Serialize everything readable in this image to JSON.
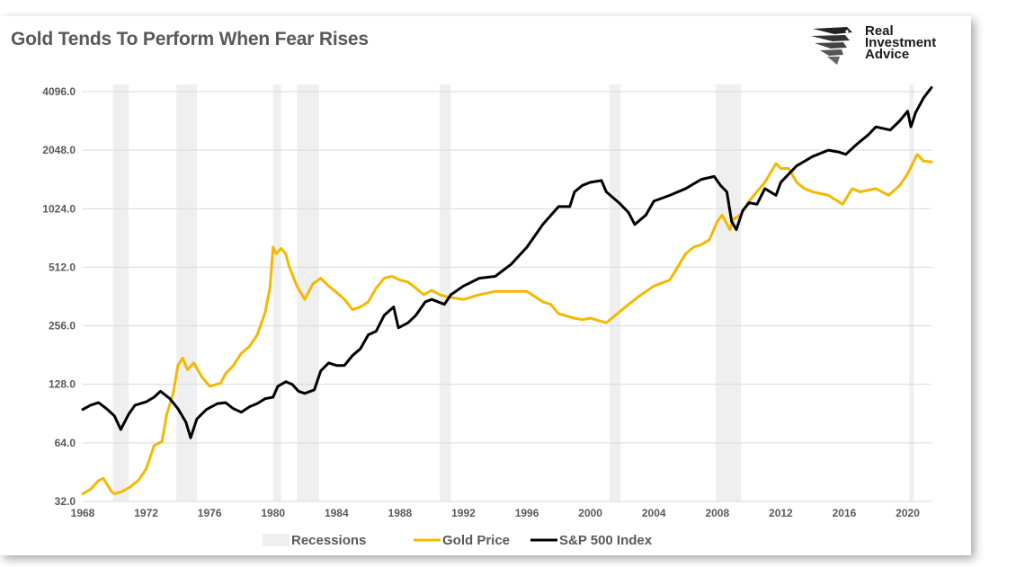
{
  "header": {
    "title": "Gold Tends To Perform When Fear Rises",
    "logo_line1": "Real",
    "logo_line2": "Investment",
    "logo_line3": "Advice"
  },
  "chart_data": {
    "type": "line",
    "title": "Gold Tends To Perform When Fear Rises",
    "xlabel": "",
    "ylabel": "",
    "y_scale": "log2",
    "ylim": [
      32,
      4500
    ],
    "xlim": [
      1968,
      2021.5
    ],
    "y_ticks": [
      "32.0",
      "64.0",
      "128.0",
      "256.0",
      "512.0",
      "1024.0",
      "2048.0",
      "4096.0"
    ],
    "x_ticks": [
      "1968",
      "1972",
      "1976",
      "1980",
      "1984",
      "1988",
      "1992",
      "1996",
      "2000",
      "2004",
      "2008",
      "2012",
      "2016",
      "2020"
    ],
    "legend": [
      "Recessions",
      "Gold Price",
      "S&P 500 Index"
    ],
    "legend_position": "bottom",
    "grid": "horizontal",
    "colors": {
      "recession": "#efefef",
      "gold": "#f5b800",
      "sp500": "#000000",
      "grid": "#d9d9d9",
      "axis_text": "#595959"
    },
    "recessions": [
      [
        1969.9,
        1970.9
      ],
      [
        1973.9,
        1975.2
      ],
      [
        1980.0,
        1980.5
      ],
      [
        1981.5,
        1982.9
      ],
      [
        1990.5,
        1991.2
      ],
      [
        2001.2,
        2001.9
      ],
      [
        2007.9,
        2009.5
      ],
      [
        2020.1,
        2020.4
      ]
    ],
    "series": [
      {
        "name": "Gold Price",
        "x": [
          1968.0,
          1968.5,
          1969.0,
          1969.3,
          1969.8,
          1970.0,
          1970.5,
          1971.0,
          1971.5,
          1972.0,
          1972.5,
          1973.0,
          1973.3,
          1973.7,
          1974.0,
          1974.3,
          1974.6,
          1975.0,
          1975.5,
          1976.0,
          1976.7,
          1977.0,
          1977.5,
          1978.0,
          1978.5,
          1979.0,
          1979.5,
          1979.8,
          1980.0,
          1980.2,
          1980.5,
          1980.8,
          1981.0,
          1981.5,
          1982.0,
          1982.5,
          1983.0,
          1983.5,
          1984.0,
          1984.5,
          1985.0,
          1985.5,
          1986.0,
          1986.5,
          1987.0,
          1987.5,
          1988.0,
          1988.5,
          1989.0,
          1989.5,
          1990.0,
          1990.5,
          1991.0,
          1992.0,
          1993.0,
          1994.0,
          1995.0,
          1996.0,
          1997.0,
          1997.5,
          1998.0,
          1999.0,
          1999.5,
          2000.0,
          2001.0,
          2002.0,
          2003.0,
          2004.0,
          2005.0,
          2006.0,
          2006.5,
          2007.0,
          2007.5,
          2008.0,
          2008.3,
          2008.8,
          2009.0,
          2009.5,
          2010.0,
          2011.0,
          2011.7,
          2012.0,
          2012.5,
          2013.0,
          2013.5,
          2014.0,
          2015.0,
          2015.9,
          2016.5,
          2017.0,
          2018.0,
          2018.8,
          2019.5,
          2020.0,
          2020.6,
          2021.0,
          2021.5
        ],
        "values": [
          35,
          37,
          41,
          42,
          36,
          35,
          36,
          38,
          41,
          47,
          62,
          65,
          90,
          115,
          160,
          175,
          152,
          165,
          140,
          125,
          130,
          145,
          160,
          185,
          200,
          230,
          300,
          400,
          650,
          600,
          640,
          600,
          520,
          410,
          350,
          420,
          450,
          410,
          380,
          350,
          310,
          320,
          340,
          400,
          450,
          460,
          440,
          430,
          400,
          370,
          390,
          370,
          360,
          350,
          370,
          385,
          385,
          385,
          340,
          330,
          295,
          280,
          275,
          280,
          265,
          310,
          360,
          410,
          440,
          600,
          650,
          670,
          710,
          880,
          950,
          800,
          900,
          960,
          1120,
          1400,
          1750,
          1650,
          1650,
          1400,
          1300,
          1250,
          1200,
          1080,
          1300,
          1250,
          1300,
          1200,
          1350,
          1550,
          1950,
          1800,
          1780
        ]
      },
      {
        "name": "S&P 500 Index",
        "x": [
          1968.0,
          1968.5,
          1969.0,
          1969.5,
          1970.0,
          1970.4,
          1970.9,
          1971.3,
          1972.0,
          1972.5,
          1972.9,
          1973.5,
          1974.0,
          1974.5,
          1974.8,
          1975.2,
          1975.8,
          1976.5,
          1977.0,
          1977.5,
          1978.0,
          1978.5,
          1979.0,
          1979.5,
          1980.0,
          1980.3,
          1980.8,
          1981.2,
          1981.6,
          1982.0,
          1982.6,
          1983.0,
          1983.5,
          1984.0,
          1984.5,
          1985.0,
          1985.5,
          1986.0,
          1986.5,
          1987.0,
          1987.6,
          1987.9,
          1988.5,
          1989.0,
          1989.6,
          1990.0,
          1990.8,
          1991.2,
          1992.0,
          1993.0,
          1994.0,
          1995.0,
          1996.0,
          1997.0,
          1998.0,
          1998.7,
          1999.0,
          1999.5,
          2000.0,
          2000.7,
          2001.0,
          2001.8,
          2002.4,
          2002.8,
          2003.5,
          2004.0,
          2005.0,
          2006.0,
          2007.0,
          2007.8,
          2008.2,
          2008.6,
          2008.9,
          2009.2,
          2009.6,
          2010.0,
          2010.5,
          2011.0,
          2011.7,
          2012.0,
          2013.0,
          2014.0,
          2015.0,
          2015.7,
          2016.1,
          2016.8,
          2017.5,
          2018.0,
          2018.9,
          2019.5,
          2020.0,
          2020.2,
          2020.5,
          2021.0,
          2021.5
        ],
        "values": [
          95,
          100,
          103,
          96,
          88,
          75,
          90,
          100,
          104,
          110,
          118,
          108,
          96,
          82,
          68,
          85,
          95,
          102,
          103,
          96,
          92,
          98,
          102,
          108,
          110,
          125,
          132,
          128,
          118,
          115,
          120,
          150,
          165,
          160,
          160,
          180,
          195,
          230,
          240,
          290,
          320,
          250,
          265,
          290,
          340,
          350,
          330,
          370,
          410,
          450,
          460,
          530,
          650,
          850,
          1050,
          1050,
          1250,
          1350,
          1400,
          1430,
          1250,
          1100,
          980,
          850,
          950,
          1120,
          1200,
          1300,
          1450,
          1500,
          1350,
          1250,
          880,
          800,
          1000,
          1100,
          1080,
          1300,
          1200,
          1400,
          1700,
          1900,
          2050,
          2000,
          1950,
          2200,
          2450,
          2700,
          2600,
          2900,
          3250,
          2700,
          3200,
          3800,
          4300
        ]
      }
    ]
  }
}
